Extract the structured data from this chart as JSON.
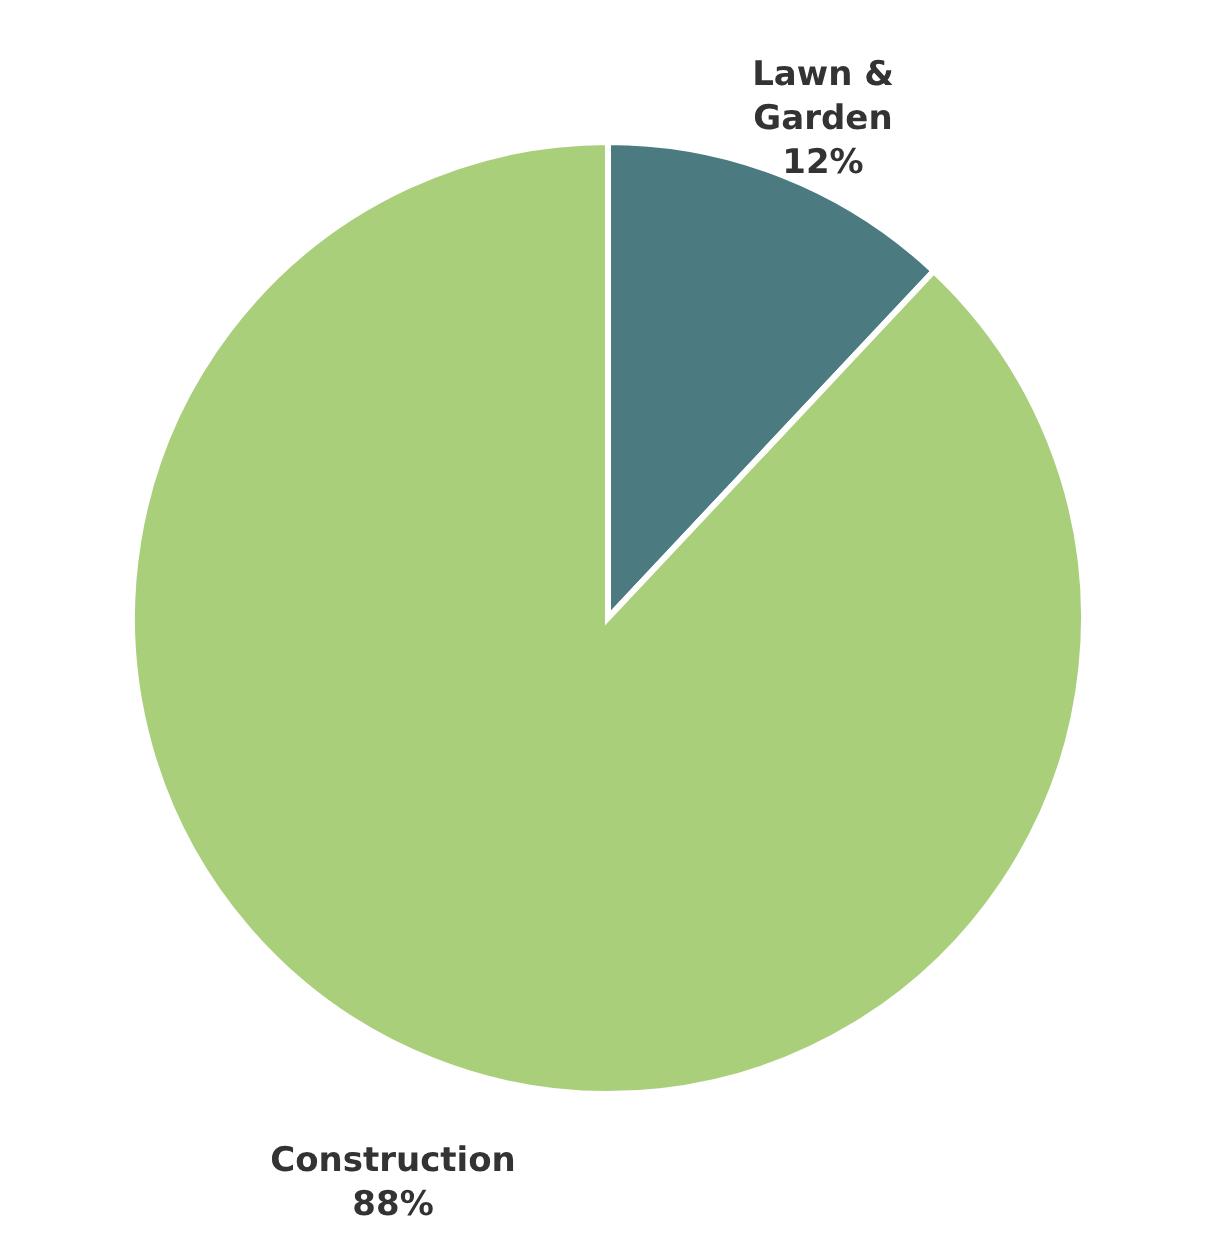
{
  "chart_data": {
    "type": "pie",
    "categories": [
      "Lawn & Garden",
      "Construction"
    ],
    "values": [
      12,
      88
    ],
    "colors": [
      "#4b7b80",
      "#a9cf7b"
    ],
    "value_labels": [
      "12%",
      "88%"
    ]
  }
}
